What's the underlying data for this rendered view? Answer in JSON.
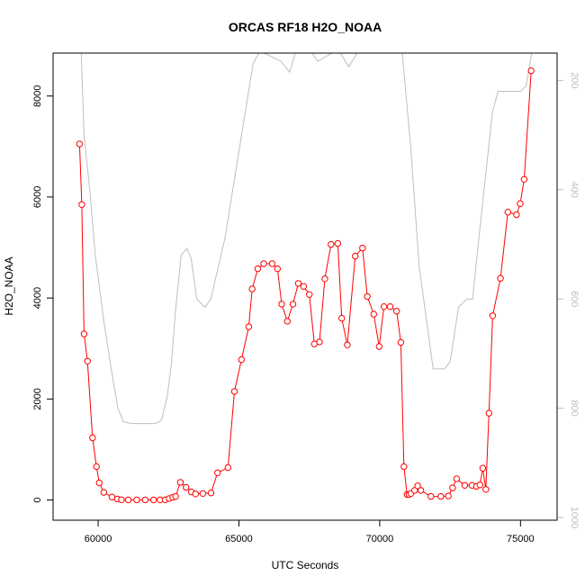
{
  "chart_data": {
    "type": "line",
    "title": "ORCAS RF18 H2O_NOAA",
    "xlabel": "UTC Seconds",
    "ylabel": "H2O_NOAA",
    "xlim": [
      58400,
      76300
    ],
    "ylim": [
      -400,
      8850
    ],
    "x_ticks": [
      60000,
      65000,
      70000,
      75000
    ],
    "x_tick_labels": [
      "60000",
      "65000",
      "70000",
      "75000"
    ],
    "y_ticks": [
      0,
      2000,
      4000,
      6000,
      8000
    ],
    "y_tick_labels": [
      "0",
      "2000",
      "4000",
      "6000",
      "8000"
    ],
    "right_axis": {
      "ylim": [
        1005,
        150
      ],
      "ticks": [
        200,
        400,
        600,
        800,
        1000
      ],
      "tick_labels": [
        "200",
        "400",
        "600",
        "800",
        "1000"
      ]
    },
    "grid": false,
    "colors": {
      "primary": "#ff0000",
      "secondary": "#bebebe",
      "axis": "#000000"
    },
    "series": [
      {
        "axis": "left",
        "color": "#ff0000",
        "marker": "open-circle",
        "x": [
          59340,
          59420,
          59500,
          59620,
          59800,
          59940,
          60040,
          60200,
          60490,
          60680,
          60830,
          61070,
          61370,
          61670,
          61970,
          62200,
          62380,
          62520,
          62650,
          62750,
          62920,
          63120,
          63310,
          63460,
          63720,
          64010,
          64240,
          64610,
          64840,
          65090,
          65350,
          65470,
          65670,
          65880,
          66180,
          66370,
          66520,
          66720,
          66920,
          67110,
          67300,
          67500,
          67680,
          67860,
          68050,
          68270,
          68510,
          68650,
          68850,
          69130,
          69390,
          69560,
          69790,
          69980,
          70150,
          70370,
          70600,
          70750,
          70860,
          70970,
          71040,
          71110,
          71240,
          71350,
          71460,
          71820,
          72170,
          72440,
          72590,
          72730,
          73020,
          73280,
          73440,
          73560,
          73660,
          73770,
          73880,
          74010,
          74290,
          74550,
          74860,
          74990,
          75130,
          75380
        ],
        "y": [
          7050,
          5850,
          3290,
          2750,
          1230,
          660,
          340,
          150,
          60,
          20,
          5,
          3,
          2,
          2,
          2,
          5,
          5,
          30,
          55,
          70,
          350,
          250,
          160,
          120,
          130,
          140,
          540,
          640,
          2150,
          2780,
          3430,
          4180,
          4580,
          4680,
          4680,
          4580,
          3880,
          3540,
          3880,
          4290,
          4230,
          4070,
          3090,
          3130,
          4380,
          5060,
          5080,
          3600,
          3070,
          4830,
          4990,
          4030,
          3680,
          3040,
          3830,
          3830,
          3740,
          3120,
          660,
          110,
          110,
          130,
          190,
          280,
          190,
          70,
          70,
          80,
          240,
          420,
          290,
          290,
          270,
          300,
          630,
          210,
          1720,
          3650,
          4390,
          5700,
          5650,
          5870,
          6350,
          8500
        ]
      },
      {
        "axis": "right",
        "color": "#bebebe",
        "marker": "none",
        "x": [
          59400,
          59500,
          59700,
          59900,
          60200,
          60500,
          60700,
          60900,
          61200,
          61500,
          61800,
          62050,
          62250,
          62450,
          62600,
          62750,
          62950,
          63150,
          63300,
          63500,
          63800,
          64000,
          64500,
          65000,
          65500,
          65700,
          65900,
          66500,
          66800,
          67000,
          67200,
          67600,
          67800,
          68300,
          68600,
          68900,
          69200,
          69600,
          70000,
          70800,
          71100,
          71400,
          71900,
          72300,
          72500,
          72800,
          73100,
          73300,
          73500,
          74000,
          74200,
          74600,
          75000,
          75200,
          75400
        ],
        "y": [
          150,
          300,
          400,
          520,
          640,
          740,
          800,
          825,
          828,
          828,
          828,
          828,
          822,
          780,
          720,
          620,
          520,
          508,
          525,
          600,
          615,
          600,
          490,
          330,
          170,
          150,
          150,
          165,
          185,
          150,
          150,
          150,
          165,
          150,
          150,
          175,
          150,
          150,
          150,
          150,
          320,
          540,
          728,
          728,
          715,
          615,
          600,
          600,
          500,
          260,
          220,
          220,
          220,
          210,
          150
        ]
      }
    ]
  }
}
